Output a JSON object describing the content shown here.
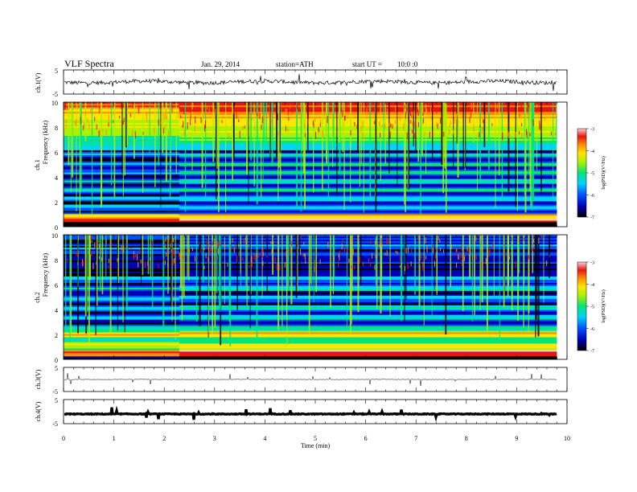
{
  "header": {
    "title": "VLF  Spectra",
    "date": "Jan. 29, 2014",
    "station": "station=ATH",
    "start_label": "start  UT  =",
    "start_time": "10:0  :0"
  },
  "chart_data": [
    {
      "type": "line",
      "panel": "ch1-waveform",
      "ylabel": "ch.1(V)",
      "ylim": [
        -5,
        5
      ],
      "yticks": [
        "5",
        "-5"
      ],
      "baseline": 0,
      "color": "#000000"
    },
    {
      "type": "heatmap",
      "panel": "ch1-spectrogram",
      "ylabel": "ch.1\nFrequency  (kHz)",
      "ylim": [
        0,
        10
      ],
      "yticks": [
        "10",
        "8",
        "6",
        "4",
        "2",
        "0"
      ],
      "colorbar": {
        "label": "log(PSD)(V²/Hz)",
        "range": [
          -7,
          -3
        ],
        "ticks": [
          "-3",
          "-4",
          "-5",
          "-6",
          "-7"
        ],
        "colors": [
          "#000000",
          "#0000b4",
          "#0050ff",
          "#00d2ff",
          "#00e678",
          "#aaf000",
          "#ffe600",
          "#ff8c00",
          "#e61414",
          "#ffd2d2"
        ]
      }
    },
    {
      "type": "heatmap",
      "panel": "ch2-spectrogram",
      "ylabel": "ch.2\nFrequency  (kHz)",
      "ylim": [
        0,
        10
      ],
      "yticks": [
        "10",
        "8",
        "6",
        "4",
        "2",
        "0"
      ],
      "colorbar": {
        "label": "log(PSD)(V²/Hz)",
        "range": [
          -7,
          -3
        ],
        "ticks": [
          "-3",
          "-4",
          "-5",
          "-6",
          "-7"
        ]
      }
    },
    {
      "type": "line",
      "panel": "ch3-waveform",
      "ylabel": "ch.3(V)",
      "ylim": [
        -5,
        5
      ],
      "yticks": [
        "5",
        "-5"
      ],
      "baseline": 0
    },
    {
      "type": "line",
      "panel": "ch4-waveform",
      "ylabel": "ch.4(V)",
      "ylim": [
        -5,
        5
      ],
      "yticks": [
        "5",
        "-5"
      ],
      "baseline": -1
    }
  ],
  "x_axis": {
    "label": "Time  (min)",
    "range": [
      0,
      10
    ],
    "data_end": 9.8,
    "ticks": [
      "0",
      "1",
      "2",
      "3",
      "4",
      "5",
      "6",
      "7",
      "8",
      "9",
      "10"
    ]
  }
}
